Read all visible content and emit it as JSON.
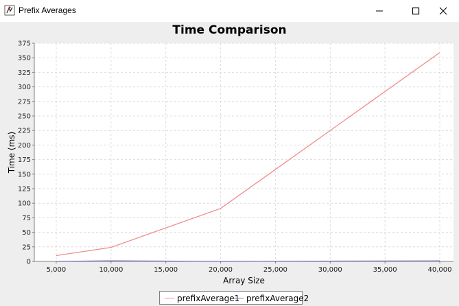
{
  "window": {
    "title": "Prefix Averages",
    "controls": {
      "minimize": "minimize-icon",
      "maximize": "maximize-icon",
      "close": "close-icon"
    }
  },
  "colors": {
    "series1": "#f08c8c",
    "series2": "#7272b8",
    "grid": "#dcdcdc",
    "plot_background": "#ffffff",
    "window_background": "#eeeeee"
  },
  "chart_data": {
    "type": "line",
    "title": "Time Comparison",
    "xlabel": "Array Size",
    "ylabel": "Time (ms)",
    "xlim": [
      3000,
      41250
    ],
    "ylim": [
      0,
      375
    ],
    "xticks": [
      5000,
      10000,
      15000,
      20000,
      25000,
      30000,
      35000,
      40000
    ],
    "xtick_labels": [
      "5,000",
      "10,000",
      "15,000",
      "20,000",
      "25,000",
      "30,000",
      "35,000",
      "40,000"
    ],
    "yticks": [
      0,
      25,
      50,
      75,
      100,
      125,
      150,
      175,
      200,
      225,
      250,
      275,
      300,
      325,
      350,
      375
    ],
    "ytick_labels": [
      "0",
      "25",
      "50",
      "75",
      "100",
      "125",
      "150",
      "175",
      "200",
      "225",
      "250",
      "275",
      "300",
      "325",
      "350",
      "375"
    ],
    "grid": true,
    "legend_position": "bottom",
    "series": [
      {
        "name": "prefixAverage1",
        "x": [
          5000,
          10000,
          20000,
          40000
        ],
        "y": [
          10,
          24,
          91,
          359
        ]
      },
      {
        "name": "prefixAverage2",
        "x": [
          5000,
          10000,
          20000,
          40000
        ],
        "y": [
          0,
          1,
          0,
          1
        ]
      }
    ]
  }
}
